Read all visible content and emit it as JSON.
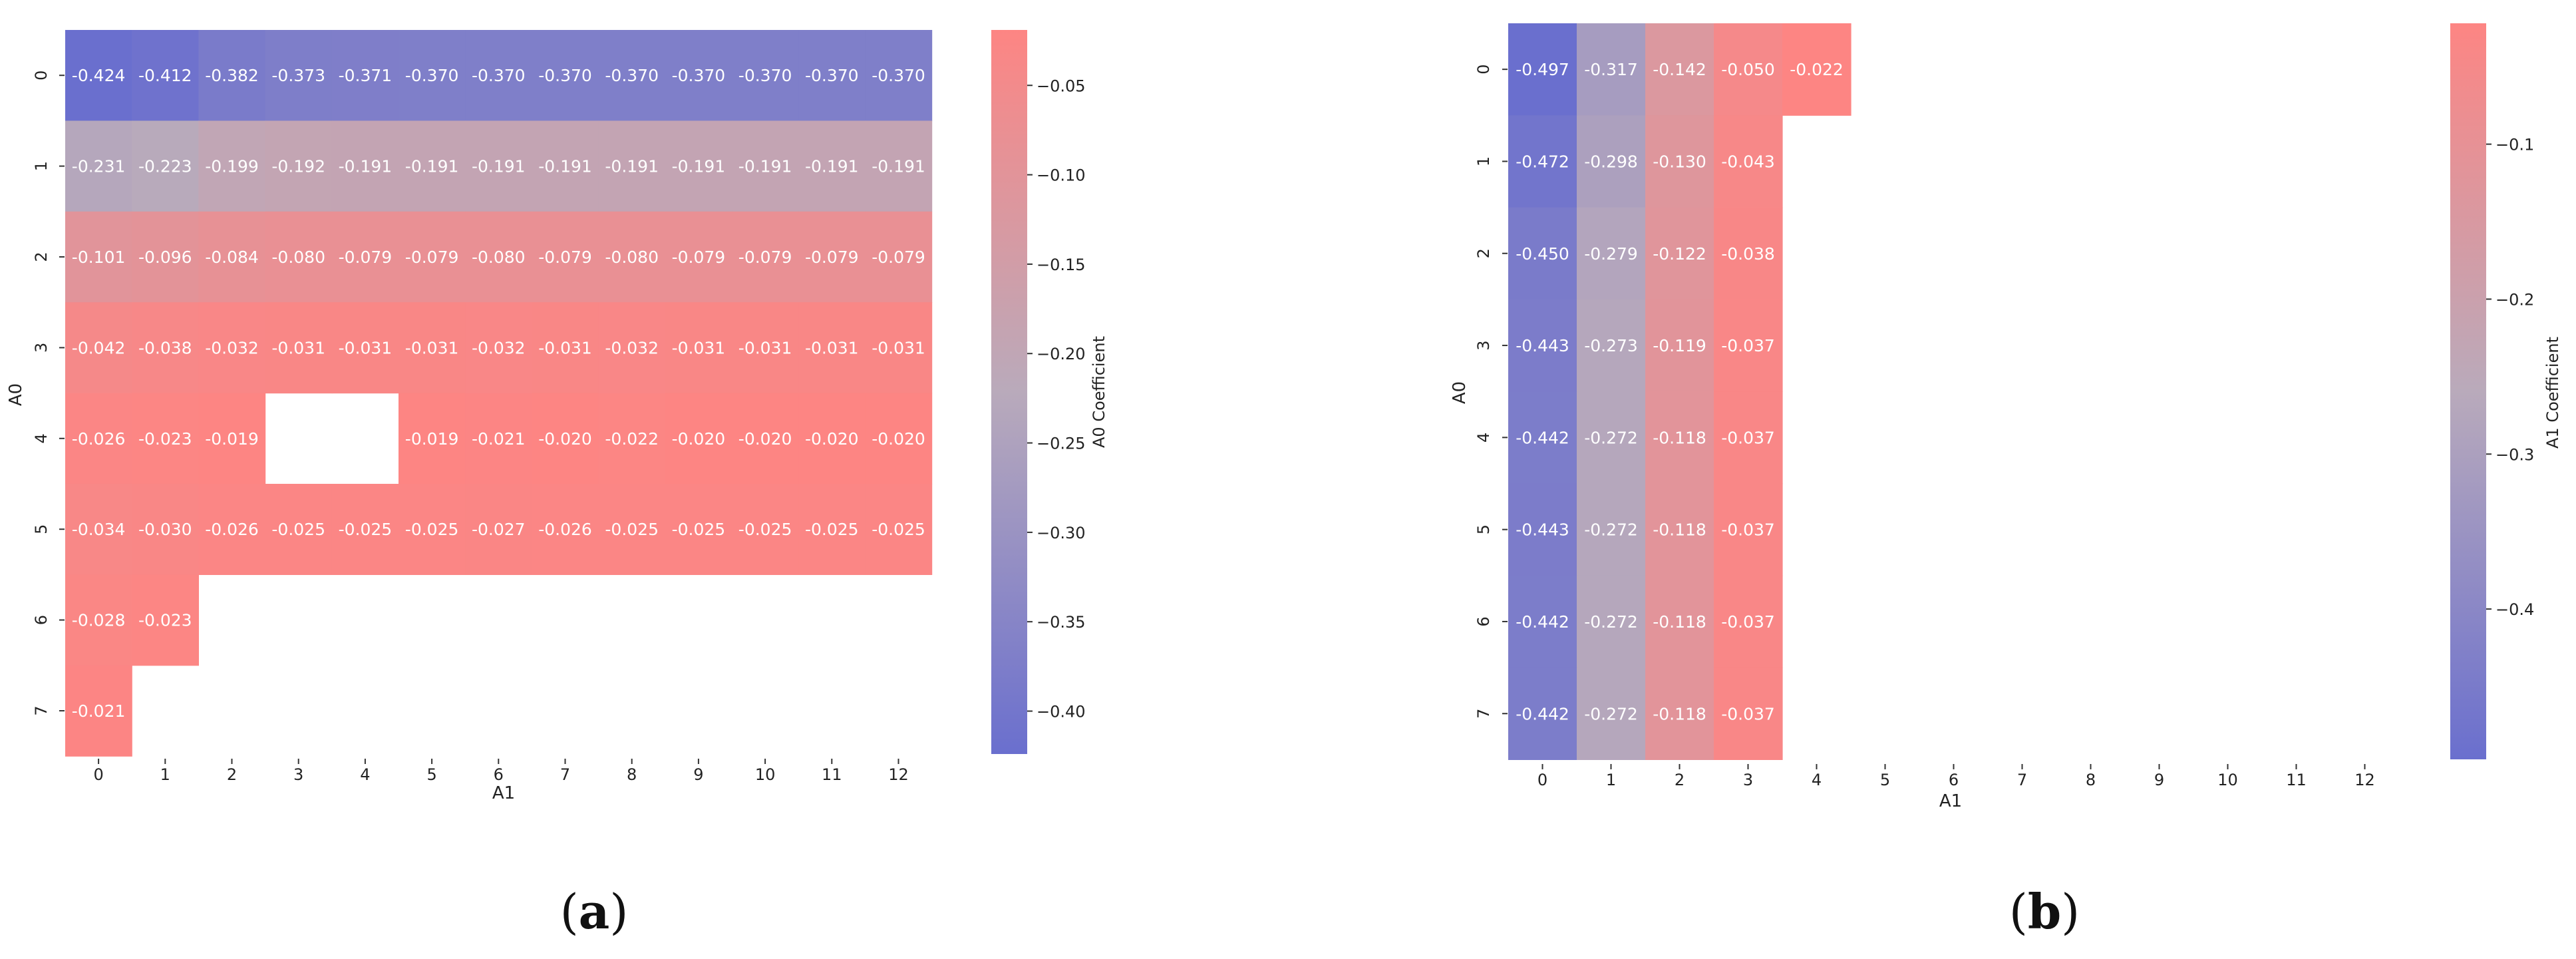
{
  "chart_data": [
    {
      "type": "heatmap",
      "panel_label": "a",
      "xlabel": "A1",
      "ylabel": "A0",
      "x_categories": [
        "0",
        "1",
        "2",
        "3",
        "4",
        "5",
        "6",
        "7",
        "8",
        "9",
        "10",
        "11",
        "12"
      ],
      "y_categories": [
        "0",
        "1",
        "2",
        "3",
        "4",
        "5",
        "6",
        "7"
      ],
      "values": [
        [
          "-0.424",
          "-0.412",
          "-0.382",
          "-0.373",
          "-0.371",
          "-0.370",
          "-0.370",
          "-0.370",
          "-0.370",
          "-0.370",
          "-0.370",
          "-0.370",
          "-0.370"
        ],
        [
          "-0.231",
          "-0.223",
          "-0.199",
          "-0.192",
          "-0.191",
          "-0.191",
          "-0.191",
          "-0.191",
          "-0.191",
          "-0.191",
          "-0.191",
          "-0.191",
          "-0.191"
        ],
        [
          "-0.101",
          "-0.096",
          "-0.084",
          "-0.080",
          "-0.079",
          "-0.079",
          "-0.080",
          "-0.079",
          "-0.080",
          "-0.079",
          "-0.079",
          "-0.079",
          "-0.079"
        ],
        [
          "-0.042",
          "-0.038",
          "-0.032",
          "-0.031",
          "-0.031",
          "-0.031",
          "-0.032",
          "-0.031",
          "-0.032",
          "-0.031",
          "-0.031",
          "-0.031",
          "-0.031"
        ],
        [
          "-0.026",
          "-0.023",
          "-0.019",
          null,
          null,
          "-0.019",
          "-0.021",
          "-0.020",
          "-0.022",
          "-0.020",
          "-0.020",
          "-0.020",
          "-0.020"
        ],
        [
          "-0.034",
          "-0.030",
          "-0.026",
          "-0.025",
          "-0.025",
          "-0.025",
          "-0.027",
          "-0.026",
          "-0.025",
          "-0.025",
          "-0.025",
          "-0.025",
          "-0.025"
        ],
        [
          "-0.028",
          "-0.023",
          null,
          null,
          null,
          null,
          null,
          null,
          null,
          null,
          null,
          null,
          null
        ],
        [
          "-0.021",
          null,
          null,
          null,
          null,
          null,
          null,
          null,
          null,
          null,
          null,
          null,
          null
        ]
      ],
      "colorbar": {
        "label": "A0 Coefficient",
        "vmin": -0.424,
        "vmax": -0.019,
        "ticks": [
          -0.4,
          -0.35,
          -0.3,
          -0.25,
          -0.2,
          -0.15,
          -0.1,
          -0.05
        ],
        "tick_labels": [
          "−0.40",
          "−0.35",
          "−0.30",
          "−0.25",
          "−0.20",
          "−0.15",
          "−0.10",
          "−0.05"
        ]
      },
      "colormap": {
        "low": "#6a6fce",
        "mid": "#b9aabb",
        "high": "#fd8583"
      }
    },
    {
      "type": "heatmap",
      "panel_label": "b",
      "xlabel": "A1",
      "ylabel": "A0",
      "x_categories": [
        "0",
        "1",
        "2",
        "3",
        "4",
        "5",
        "6",
        "7",
        "8",
        "9",
        "10",
        "11",
        "12"
      ],
      "y_categories": [
        "0",
        "1",
        "2",
        "3",
        "4",
        "5",
        "6",
        "7"
      ],
      "values": [
        [
          "-0.497",
          "-0.317",
          "-0.142",
          "-0.050",
          "-0.022",
          null,
          null,
          null,
          null,
          null,
          null,
          null,
          null
        ],
        [
          "-0.472",
          "-0.298",
          "-0.130",
          "-0.043",
          null,
          null,
          null,
          null,
          null,
          null,
          null,
          null,
          null
        ],
        [
          "-0.450",
          "-0.279",
          "-0.122",
          "-0.038",
          null,
          null,
          null,
          null,
          null,
          null,
          null,
          null,
          null
        ],
        [
          "-0.443",
          "-0.273",
          "-0.119",
          "-0.037",
          null,
          null,
          null,
          null,
          null,
          null,
          null,
          null,
          null
        ],
        [
          "-0.442",
          "-0.272",
          "-0.118",
          "-0.037",
          null,
          null,
          null,
          null,
          null,
          null,
          null,
          null,
          null
        ],
        [
          "-0.443",
          "-0.272",
          "-0.118",
          "-0.037",
          null,
          null,
          null,
          null,
          null,
          null,
          null,
          null,
          null
        ],
        [
          "-0.442",
          "-0.272",
          "-0.118",
          "-0.037",
          null,
          null,
          null,
          null,
          null,
          null,
          null,
          null,
          null
        ],
        [
          "-0.442",
          "-0.272",
          "-0.118",
          "-0.037",
          null,
          null,
          null,
          null,
          null,
          null,
          null,
          null,
          null
        ]
      ],
      "colorbar": {
        "label": "A1 Coefficient",
        "vmin": -0.497,
        "vmax": -0.022,
        "ticks": [
          -0.4,
          -0.3,
          -0.2,
          -0.1
        ],
        "tick_labels": [
          "−0.4",
          "−0.3",
          "−0.2",
          "−0.1"
        ]
      },
      "colormap": {
        "low": "#6a6fce",
        "mid": "#b9aabb",
        "high": "#fd8583"
      }
    }
  ]
}
